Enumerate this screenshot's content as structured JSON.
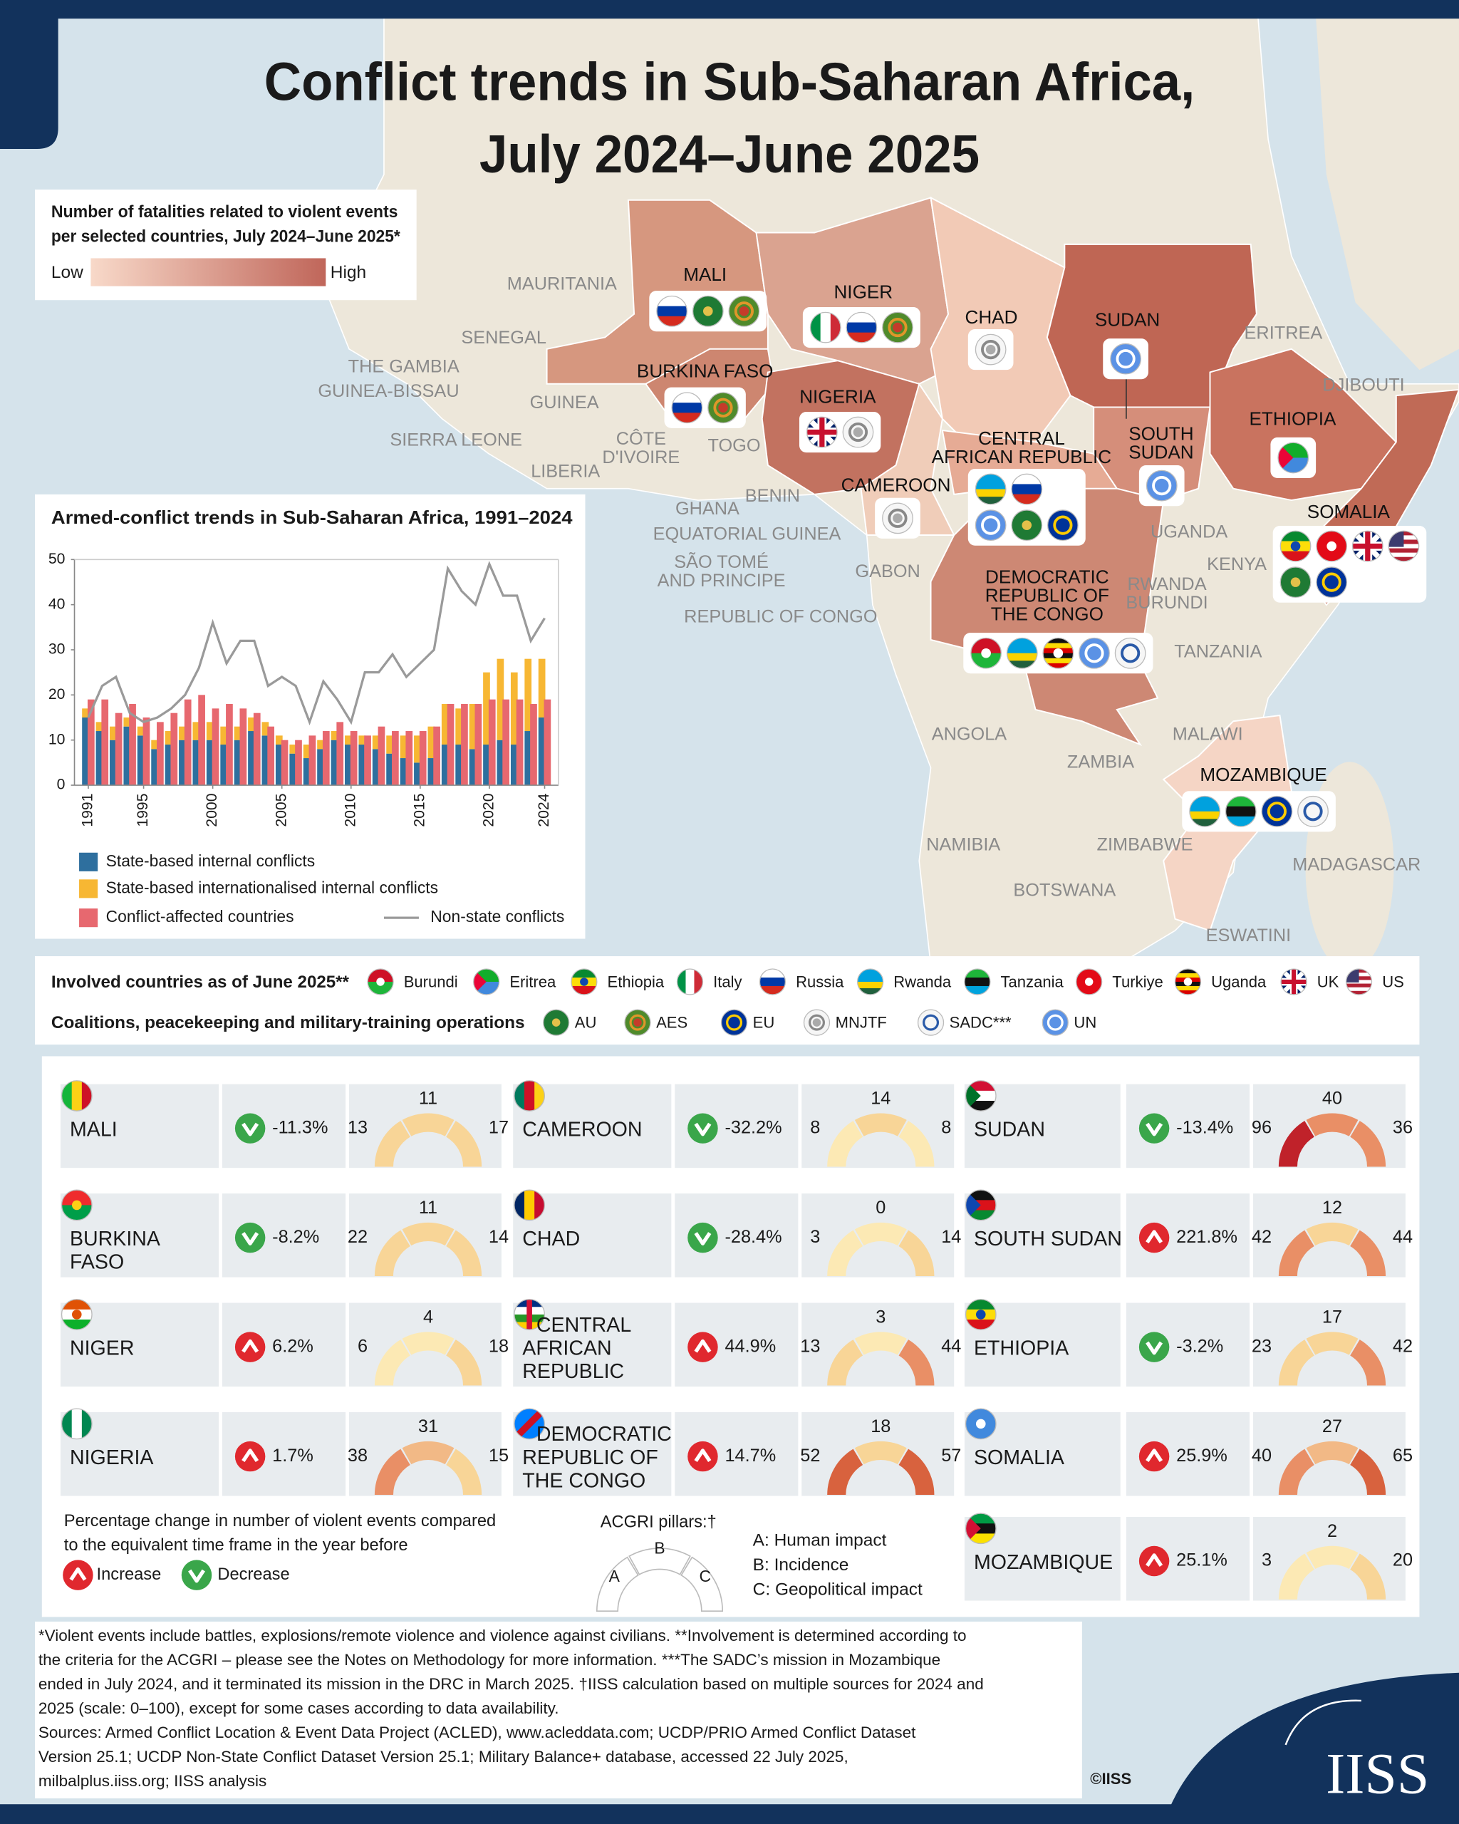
{
  "title": [
    "Conflict trends in Sub-Saharan Africa,",
    "July 2024–June 2025"
  ],
  "fatality_legend": {
    "title": [
      "Number of fatalities related to violent events",
      "per selected countries, July 2024–June 2025*"
    ],
    "low": "Low",
    "high": "High",
    "colors": [
      "#f8d9c9",
      "#c0665a"
    ]
  },
  "map": {
    "countries": [
      {
        "name": [
          "MALI"
        ],
        "color": "#d6977f"
      },
      {
        "name": [
          "NIGER"
        ],
        "color": "#daa390"
      },
      {
        "name": [
          "CHAD"
        ],
        "color": "#f2cab6"
      },
      {
        "name": [
          "SUDAN"
        ],
        "color": "#bf6654"
      },
      {
        "name": [
          "BURKINA FASO"
        ],
        "color": "#cd8670"
      },
      {
        "name": [
          "NIGERIA"
        ],
        "color": "#c27260"
      },
      {
        "name": [
          "CENTRAL",
          "AFRICAN REPUBLIC"
        ],
        "color": "#e6ab95"
      },
      {
        "name": [
          "SOUTH",
          "SUDAN"
        ],
        "color": "#d58e7a"
      },
      {
        "name": [
          "ETHIOPIA"
        ],
        "color": "#c9735f"
      },
      {
        "name": [
          "CAMEROON"
        ],
        "color": "#f0cdb9"
      },
      {
        "name": [
          "SOMALIA"
        ],
        "color": "#c06a56"
      },
      {
        "name": [
          "DEMOCRATIC",
          "REPUBLIC OF",
          "THE CONGO"
        ],
        "color": "#cd8874"
      },
      {
        "name": [
          "MOZAMBIQUE"
        ],
        "color": "#f5d5c5"
      }
    ],
    "labels": [
      [
        "MAURITANIA"
      ],
      [
        "SENEGAL"
      ],
      [
        "THE GAMBIA"
      ],
      [
        "GUINEA-BISSAU"
      ],
      [
        "GUINEA"
      ],
      [
        "SIERRA LEONE"
      ],
      [
        "CÔTE",
        "D'IVOIRE"
      ],
      [
        "LIBERIA"
      ],
      [
        "TOGO"
      ],
      [
        "BENIN"
      ],
      [
        "GHANA"
      ],
      [
        "EQUATORIAL GUINEA"
      ],
      [
        "SÃO TOMÉ",
        "AND PRINCIPE"
      ],
      [
        "GABON"
      ],
      [
        "REPUBLIC OF CONGO"
      ],
      [
        "UGANDA"
      ],
      [
        "KENYA"
      ],
      [
        "RWANDA",
        "BURUNDI"
      ],
      [
        "TANZANIA"
      ],
      [
        "ANGOLA"
      ],
      [
        "MALAWI"
      ],
      [
        "ZAMBIA"
      ],
      [
        "NAMIBIA"
      ],
      [
        "ZIMBABWE"
      ],
      [
        "BOTSWANA"
      ],
      [
        "MADAGASCAR"
      ],
      [
        "ESWATINI"
      ],
      [
        "ERITREA"
      ],
      [
        "DJIBOUTI"
      ]
    ]
  },
  "chart_data": {
    "type": "bar",
    "title": "Armed-conflict trends in Sub-Saharan Africa, 1991–2024",
    "x": [
      1991,
      1992,
      1993,
      1994,
      1995,
      1996,
      1997,
      1998,
      1999,
      2000,
      2001,
      2002,
      2003,
      2004,
      2005,
      2006,
      2007,
      2008,
      2009,
      2010,
      2011,
      2012,
      2013,
      2014,
      2015,
      2016,
      2017,
      2018,
      2019,
      2020,
      2021,
      2022,
      2023,
      2024
    ],
    "xlim": [
      1990,
      2025
    ],
    "xticks": [
      1991,
      1995,
      2000,
      2005,
      2010,
      2015,
      2020,
      2024
    ],
    "ylim": [
      0,
      50
    ],
    "yticks": [
      0,
      10,
      20,
      30,
      40,
      50
    ],
    "grid": false,
    "stacked": true,
    "series": [
      {
        "name": "State-based internal conflicts",
        "color": "#2e6f9e",
        "type": "bar",
        "values": [
          15,
          12,
          10,
          13,
          11,
          8,
          9,
          10,
          10,
          10,
          9,
          10,
          12,
          11,
          9,
          7,
          6,
          8,
          10,
          9,
          9,
          8,
          7,
          6,
          5,
          6,
          9,
          9,
          8,
          9,
          10,
          9,
          12,
          15
        ]
      },
      {
        "name": "State-based internationalised internal conflicts",
        "color": "#f7b733",
        "type": "bar",
        "values": [
          2,
          2,
          3,
          2,
          2,
          2,
          3,
          3,
          4,
          4,
          4,
          3,
          3,
          3,
          2,
          2,
          3,
          2,
          2,
          2,
          2,
          3,
          4,
          5,
          6,
          7,
          9,
          8,
          10,
          16,
          18,
          16,
          16,
          13
        ]
      },
      {
        "name": "Conflict-affected countries",
        "color": "#e7686f",
        "type": "bar",
        "values": [
          19,
          19,
          16,
          18,
          15,
          14,
          16,
          19,
          20,
          17,
          18,
          17,
          16,
          13,
          10,
          10,
          11,
          12,
          14,
          12,
          11,
          13,
          12,
          12,
          12,
          13,
          18,
          18,
          18,
          19,
          19,
          19,
          18,
          19
        ]
      },
      {
        "name": "Non-state conflicts",
        "color": "#9a9a9a",
        "type": "line",
        "values": [
          15,
          22,
          24,
          16,
          14,
          15,
          17,
          20,
          26,
          36,
          27,
          32,
          32,
          22,
          24,
          22,
          14,
          23,
          19,
          14,
          25,
          25,
          29,
          24,
          27,
          30,
          48,
          43,
          40,
          49,
          42,
          42,
          32,
          37
        ]
      }
    ]
  },
  "involved": {
    "title": "Involved countries as of June 2025**",
    "items": [
      "Burundi",
      "Eritrea",
      "Ethiopia",
      "Italy",
      "Russia",
      "Rwanda",
      "Tanzania",
      "Turkiye",
      "Uganda",
      "UK",
      "US"
    ]
  },
  "coalitions": {
    "title": "Coalitions, peacekeeping and military-training operations",
    "items": [
      "AU",
      "AES",
      "EU",
      "MNJTF",
      "SADC***",
      "UN"
    ]
  },
  "cards": [
    {
      "name": [
        "MALI"
      ],
      "change": -11.3,
      "change_label": "-11.3%",
      "A": 13,
      "B": 11,
      "C": 17
    },
    {
      "name": [
        "BURKINA",
        "FASO"
      ],
      "change": -8.2,
      "change_label": "-8.2%",
      "A": 22,
      "B": 11,
      "C": 14
    },
    {
      "name": [
        "NIGER"
      ],
      "change": 6.2,
      "change_label": "6.2%",
      "A": 6,
      "B": 4,
      "C": 18
    },
    {
      "name": [
        "NIGERIA"
      ],
      "change": 1.7,
      "change_label": "1.7%",
      "A": 38,
      "B": 31,
      "C": 15
    },
    {
      "name": [
        "CAMEROON"
      ],
      "change": -32.2,
      "change_label": "-32.2%",
      "A": 8,
      "B": 14,
      "C": 8
    },
    {
      "name": [
        "CHAD"
      ],
      "change": -28.4,
      "change_label": "-28.4%",
      "A": 3,
      "B": 0,
      "C": 14
    },
    {
      "name": [
        "CENTRAL",
        "AFRICAN",
        "REPUBLIC"
      ],
      "change": 44.9,
      "change_label": "44.9%",
      "A": 13,
      "B": 3,
      "C": 44
    },
    {
      "name": [
        "DEMOCRATIC",
        "REPUBLIC OF",
        "THE CONGO"
      ],
      "change": 14.7,
      "change_label": "14.7%",
      "A": 52,
      "B": 18,
      "C": 57
    },
    {
      "name": [
        "SUDAN"
      ],
      "change": -13.4,
      "change_label": "-13.4%",
      "A": 96,
      "B": 40,
      "C": 36
    },
    {
      "name": [
        "SOUTH SUDAN"
      ],
      "change": 221.8,
      "change_label": "221.8%",
      "A": 42,
      "B": 12,
      "C": 44
    },
    {
      "name": [
        "ETHIOPIA"
      ],
      "change": -3.2,
      "change_label": "-3.2%",
      "A": 23,
      "B": 17,
      "C": 42
    },
    {
      "name": [
        "SOMALIA"
      ],
      "change": 25.9,
      "change_label": "25.9%",
      "A": 40,
      "B": 27,
      "C": 65
    },
    {
      "name": [
        "MOZAMBIQUE"
      ],
      "change": 25.1,
      "change_label": "25.1%",
      "A": 3,
      "B": 2,
      "C": 20
    }
  ],
  "change_legend": {
    "text": [
      "Percentage change in number of violent events compared",
      "to the equivalent time frame in the year before"
    ],
    "increase": "Increase",
    "decrease": "Decrease"
  },
  "pillars": {
    "title": "ACGRI pillars:†",
    "letters": [
      "A",
      "B",
      "C"
    ],
    "items": [
      "A: Human impact",
      "B: Incidence",
      "C: Geopolitical impact"
    ]
  },
  "notes": [
    "*Violent events include battles, explosions/remote violence and violence against civilians. **Involvement is determined according to",
    "the criteria for the ACGRI – please see the Notes on Methodology for more information. ***The SADC’s mission in Mozambique",
    "ended in July 2024, and it terminated its mission in the DRC in March 2025. †IISS calculation based on multiple sources for 2024 and",
    "2025 (scale: 0–100), except for some cases according to data availability.",
    "Sources: Armed Conflict Location & Event Data Project (ACLED), www.acleddata.com; UCDP/PRIO Armed Conflict Dataset",
    "Version 25.1; UCDP Non-State Conflict Dataset Version 25.1; Military Balance+ database, accessed 22 July 2025,",
    "milbalplus.iiss.org; IISS analysis"
  ],
  "copyright": "©IISS",
  "logo": "IISS"
}
